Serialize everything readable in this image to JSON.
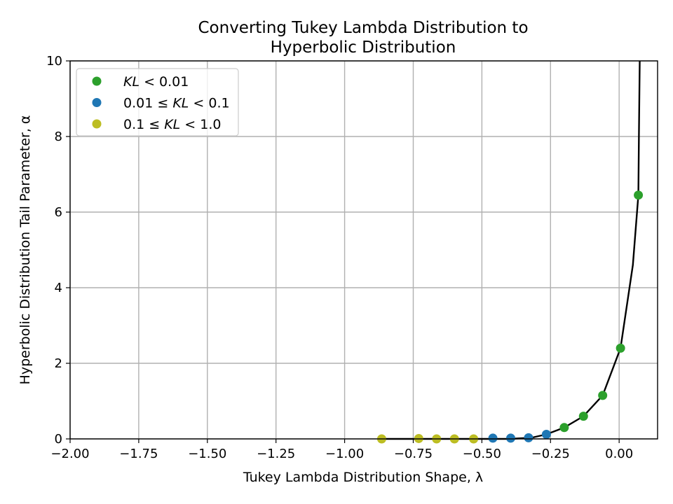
{
  "chart_data": {
    "type": "scatter",
    "title_lines": [
      "Converting Tukey Lambda Distribution to",
      "Hyperbolic Distribution"
    ],
    "xlabel": "Tukey Lambda Distribution Shape, λ",
    "ylabel": "Hyperbolic Distribution Tail Parameter, α",
    "xlim": [
      -2.0,
      0.14
    ],
    "ylim": [
      0,
      10
    ],
    "xticks": [
      -2.0,
      -1.75,
      -1.5,
      -1.25,
      -1.0,
      -0.75,
      -0.5,
      -0.25,
      0.0
    ],
    "xtick_labels": [
      "−2.00",
      "−1.75",
      "−1.50",
      "−1.25",
      "−1.00",
      "−0.75",
      "−0.50",
      "−0.25",
      "0.00"
    ],
    "yticks": [
      0,
      2,
      4,
      6,
      8,
      10
    ],
    "ytick_labels": [
      "0",
      "2",
      "4",
      "6",
      "8",
      "10"
    ],
    "grid": true,
    "legend_position": "upper-left",
    "series": [
      {
        "name": "KL < 0.01",
        "label_parts": [
          {
            "t": "KL",
            "i": true
          },
          {
            "t": " < 0.01",
            "i": false
          }
        ],
        "color": "#2ca02c",
        "points": [
          [
            -0.2,
            0.3
          ],
          [
            -0.13,
            0.6
          ],
          [
            -0.06,
            1.15
          ],
          [
            0.005,
            2.4
          ],
          [
            0.07,
            6.45
          ]
        ]
      },
      {
        "name": "0.01 ≤ KL < 0.1",
        "label_parts": [
          {
            "t": "0.01 ≤ ",
            "i": false
          },
          {
            "t": "KL",
            "i": true
          },
          {
            "t": " < 0.1",
            "i": false
          }
        ],
        "color": "#1f77b4",
        "points": [
          [
            -0.46,
            0.02
          ],
          [
            -0.395,
            0.02
          ],
          [
            -0.33,
            0.03
          ],
          [
            -0.265,
            0.12
          ]
        ]
      },
      {
        "name": "0.1 ≤ KL < 1.0",
        "label_parts": [
          {
            "t": "0.1 ≤ ",
            "i": false
          },
          {
            "t": "KL",
            "i": true
          },
          {
            "t": " < 1.0",
            "i": false
          }
        ],
        "color": "#bcbd22",
        "points": [
          [
            -0.865,
            0.0
          ],
          [
            -0.73,
            0.01
          ],
          [
            -0.665,
            0.0
          ],
          [
            -0.6,
            0.0
          ],
          [
            -0.53,
            0.0
          ]
        ]
      }
    ],
    "curve": {
      "color": "#000000",
      "points": [
        [
          -0.865,
          0.0
        ],
        [
          -0.6,
          0.0
        ],
        [
          -0.4,
          0.0
        ],
        [
          -0.32,
          0.03
        ],
        [
          -0.265,
          0.12
        ],
        [
          -0.2,
          0.3
        ],
        [
          -0.13,
          0.6
        ],
        [
          -0.06,
          1.15
        ],
        [
          0.005,
          2.4
        ],
        [
          0.05,
          4.6
        ],
        [
          0.07,
          6.45
        ],
        [
          0.072,
          8.0
        ],
        [
          0.075,
          10.0
        ]
      ]
    }
  }
}
